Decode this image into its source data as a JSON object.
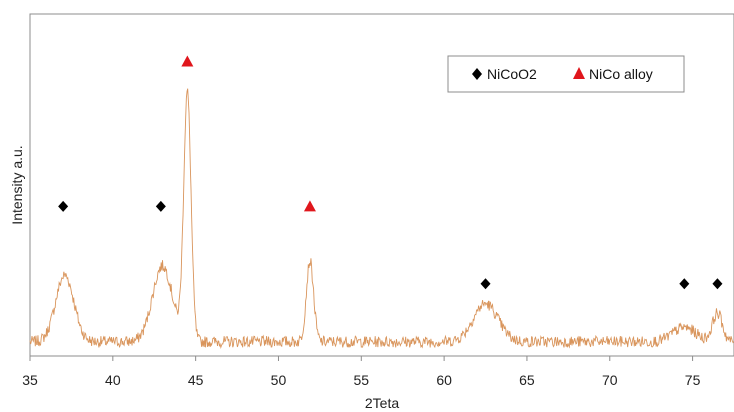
{
  "chart_data": {
    "type": "line",
    "title": "",
    "xlabel": "2Teta",
    "ylabel": "Intensity a.u.",
    "xlim": [
      35,
      77.5
    ],
    "xticks": [
      35,
      40,
      45,
      50,
      55,
      60,
      65,
      70,
      75
    ],
    "grid": false,
    "legend": "top-right",
    "series": [
      {
        "kind": "xrd-pattern",
        "color": "#d9955c",
        "baseline": 3.0,
        "peaks": [
          {
            "x": 37.1,
            "height": 14.0,
            "width": 0.55
          },
          {
            "x": 43.0,
            "height": 16.0,
            "width": 0.6
          },
          {
            "x": 44.5,
            "height": 52.0,
            "width": 0.22
          },
          {
            "x": 51.9,
            "height": 17.0,
            "width": 0.22
          },
          {
            "x": 62.5,
            "height": 8.0,
            "width": 0.75
          },
          {
            "x": 74.5,
            "height": 3.0,
            "width": 0.7
          },
          {
            "x": 76.5,
            "height": 6.0,
            "width": 0.3
          }
        ]
      }
    ],
    "markers": [
      {
        "label": "NiCoO2",
        "shape": "diamond",
        "color": "#000000",
        "points": [
          {
            "x": 37.0,
            "y": 31.5
          },
          {
            "x": 42.9,
            "y": 31.5
          },
          {
            "x": 62.5,
            "y": 15.2
          },
          {
            "x": 74.5,
            "y": 15.2
          },
          {
            "x": 76.5,
            "y": 15.2
          }
        ]
      },
      {
        "label": "NiCo alloy",
        "shape": "triangle",
        "color": "#e0161c",
        "points": [
          {
            "x": 44.5,
            "y": 62.0
          },
          {
            "x": 51.9,
            "y": 31.5
          }
        ]
      }
    ]
  }
}
